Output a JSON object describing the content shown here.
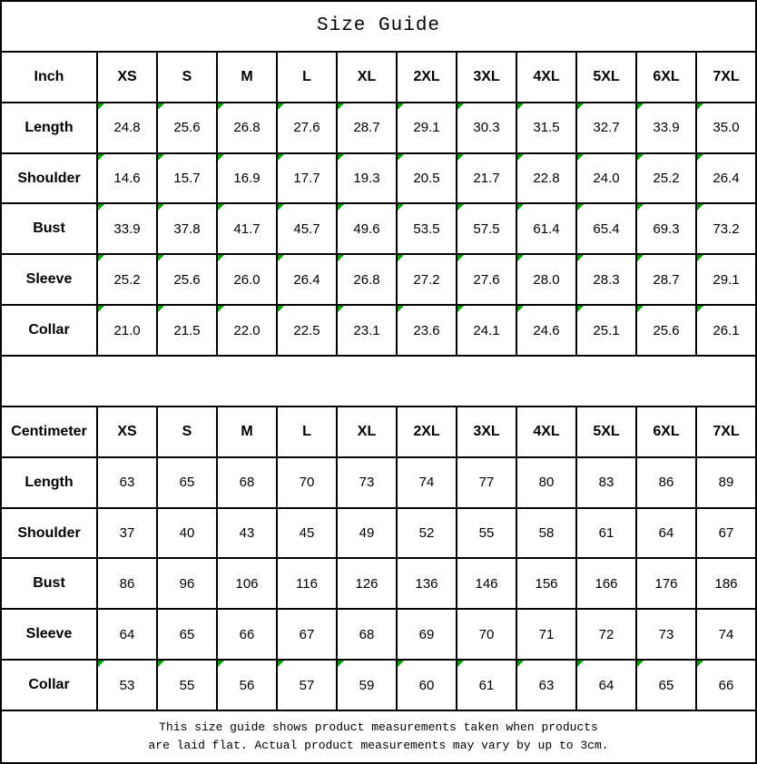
{
  "title": "Size Guide",
  "colors": {
    "flag_triangle": "#00A000",
    "border": "#000000",
    "text": "#000000",
    "background": "#FFFFFF"
  },
  "sizes": [
    "XS",
    "S",
    "M",
    "L",
    "XL",
    "2XL",
    "3XL",
    "4XL",
    "5XL",
    "6XL",
    "7XL"
  ],
  "tables": [
    {
      "unit_label": "Inch",
      "rows": [
        {
          "label": "Length",
          "flagged": true,
          "values": [
            "24.8",
            "25.6",
            "26.8",
            "27.6",
            "28.7",
            "29.1",
            "30.3",
            "31.5",
            "32.7",
            "33.9",
            "35.0"
          ]
        },
        {
          "label": "Shoulder",
          "flagged": true,
          "values": [
            "14.6",
            "15.7",
            "16.9",
            "17.7",
            "19.3",
            "20.5",
            "21.7",
            "22.8",
            "24.0",
            "25.2",
            "26.4"
          ]
        },
        {
          "label": "Bust",
          "flagged": true,
          "values": [
            "33.9",
            "37.8",
            "41.7",
            "45.7",
            "49.6",
            "53.5",
            "57.5",
            "61.4",
            "65.4",
            "69.3",
            "73.2"
          ]
        },
        {
          "label": "Sleeve",
          "flagged": true,
          "values": [
            "25.2",
            "25.6",
            "26.0",
            "26.4",
            "26.8",
            "27.2",
            "27.6",
            "28.0",
            "28.3",
            "28.7",
            "29.1"
          ]
        },
        {
          "label": "Collar",
          "flagged": true,
          "values": [
            "21.0",
            "21.5",
            "22.0",
            "22.5",
            "23.1",
            "23.6",
            "24.1",
            "24.6",
            "25.1",
            "25.6",
            "26.1"
          ]
        }
      ]
    },
    {
      "unit_label": "Centimeter",
      "rows": [
        {
          "label": "Length",
          "flagged": false,
          "values": [
            "63",
            "65",
            "68",
            "70",
            "73",
            "74",
            "77",
            "80",
            "83",
            "86",
            "89"
          ]
        },
        {
          "label": "Shoulder",
          "flagged": false,
          "values": [
            "37",
            "40",
            "43",
            "45",
            "49",
            "52",
            "55",
            "58",
            "61",
            "64",
            "67"
          ]
        },
        {
          "label": "Bust",
          "flagged": false,
          "values": [
            "86",
            "96",
            "106",
            "116",
            "126",
            "136",
            "146",
            "156",
            "166",
            "176",
            "186"
          ]
        },
        {
          "label": "Sleeve",
          "flagged": false,
          "values": [
            "64",
            "65",
            "66",
            "67",
            "68",
            "69",
            "70",
            "71",
            "72",
            "73",
            "74"
          ]
        },
        {
          "label": "Collar",
          "flagged": true,
          "values": [
            "53",
            "55",
            "56",
            "57",
            "59",
            "60",
            "61",
            "63",
            "64",
            "65",
            "66"
          ]
        }
      ]
    }
  ],
  "footer": {
    "line1": "This size guide shows product measurements taken when products",
    "line2": "are laid flat. Actual product measurements may vary by up to 3cm."
  }
}
